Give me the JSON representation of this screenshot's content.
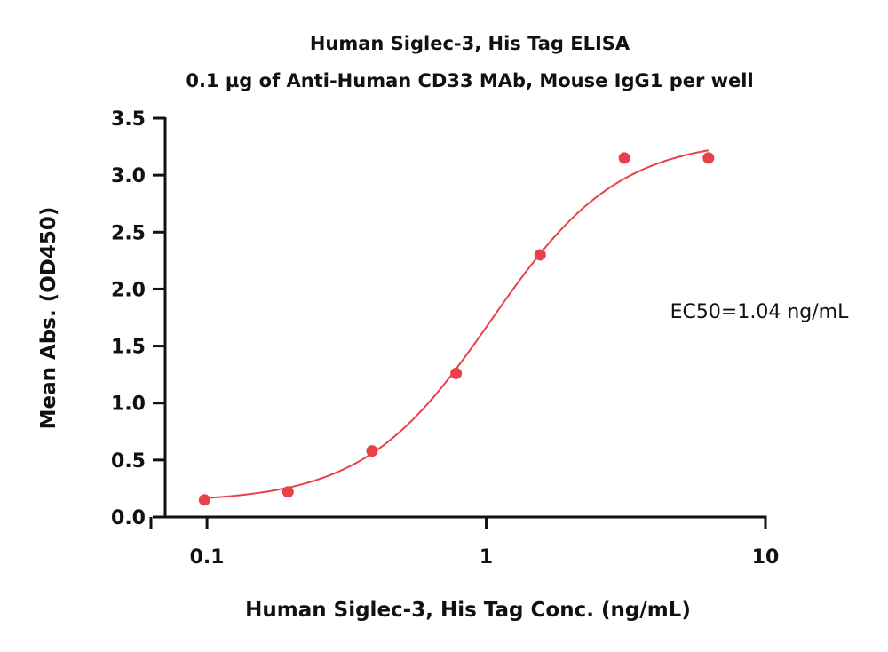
{
  "chart_data": {
    "type": "scatter",
    "title": "Human Siglec-3, His Tag ELISA",
    "subtitle": "0.1 µg of Anti-Human CD33 MAb, Mouse IgG1 per well",
    "xlabel": "Human Siglec-3, His Tag Conc. (ng/mL)",
    "ylabel": "Mean Abs. (OD450)",
    "xscale": "log",
    "xlim": [
      0.063,
      10
    ],
    "ylim": [
      0,
      3.5
    ],
    "x_ticks": [
      {
        "value": 0.1,
        "label": "0.1"
      },
      {
        "value": 1,
        "label": "1"
      },
      {
        "value": 10,
        "label": "10"
      }
    ],
    "y_ticks": [
      {
        "value": 0,
        "label": "0.0"
      },
      {
        "value": 0.5,
        "label": "0.5"
      },
      {
        "value": 1,
        "label": "1.0"
      },
      {
        "value": 1.5,
        "label": "1.5"
      },
      {
        "value": 2,
        "label": "2.0"
      },
      {
        "value": 2.5,
        "label": "2.5"
      },
      {
        "value": 3,
        "label": "3.0"
      },
      {
        "value": 3.5,
        "label": "3.5"
      }
    ],
    "series": [
      {
        "color": "#e8414a",
        "points": [
          {
            "x": 0.098,
            "y": 0.15
          },
          {
            "x": 0.195,
            "y": 0.22
          },
          {
            "x": 0.39,
            "y": 0.58
          },
          {
            "x": 0.78,
            "y": 1.26
          },
          {
            "x": 1.56,
            "y": 2.3
          },
          {
            "x": 3.125,
            "y": 3.15
          },
          {
            "x": 6.25,
            "y": 3.15
          }
        ],
        "fit": {
          "model": "4PL",
          "bottom": 0.13,
          "top": 3.32,
          "ec50": 1.04,
          "hill": 1.9,
          "x_range": [
            0.098,
            6.25
          ]
        }
      }
    ],
    "annotations": [
      {
        "text": "EC50=1.04 ng/mL"
      }
    ],
    "grid": false,
    "legend": "none"
  }
}
